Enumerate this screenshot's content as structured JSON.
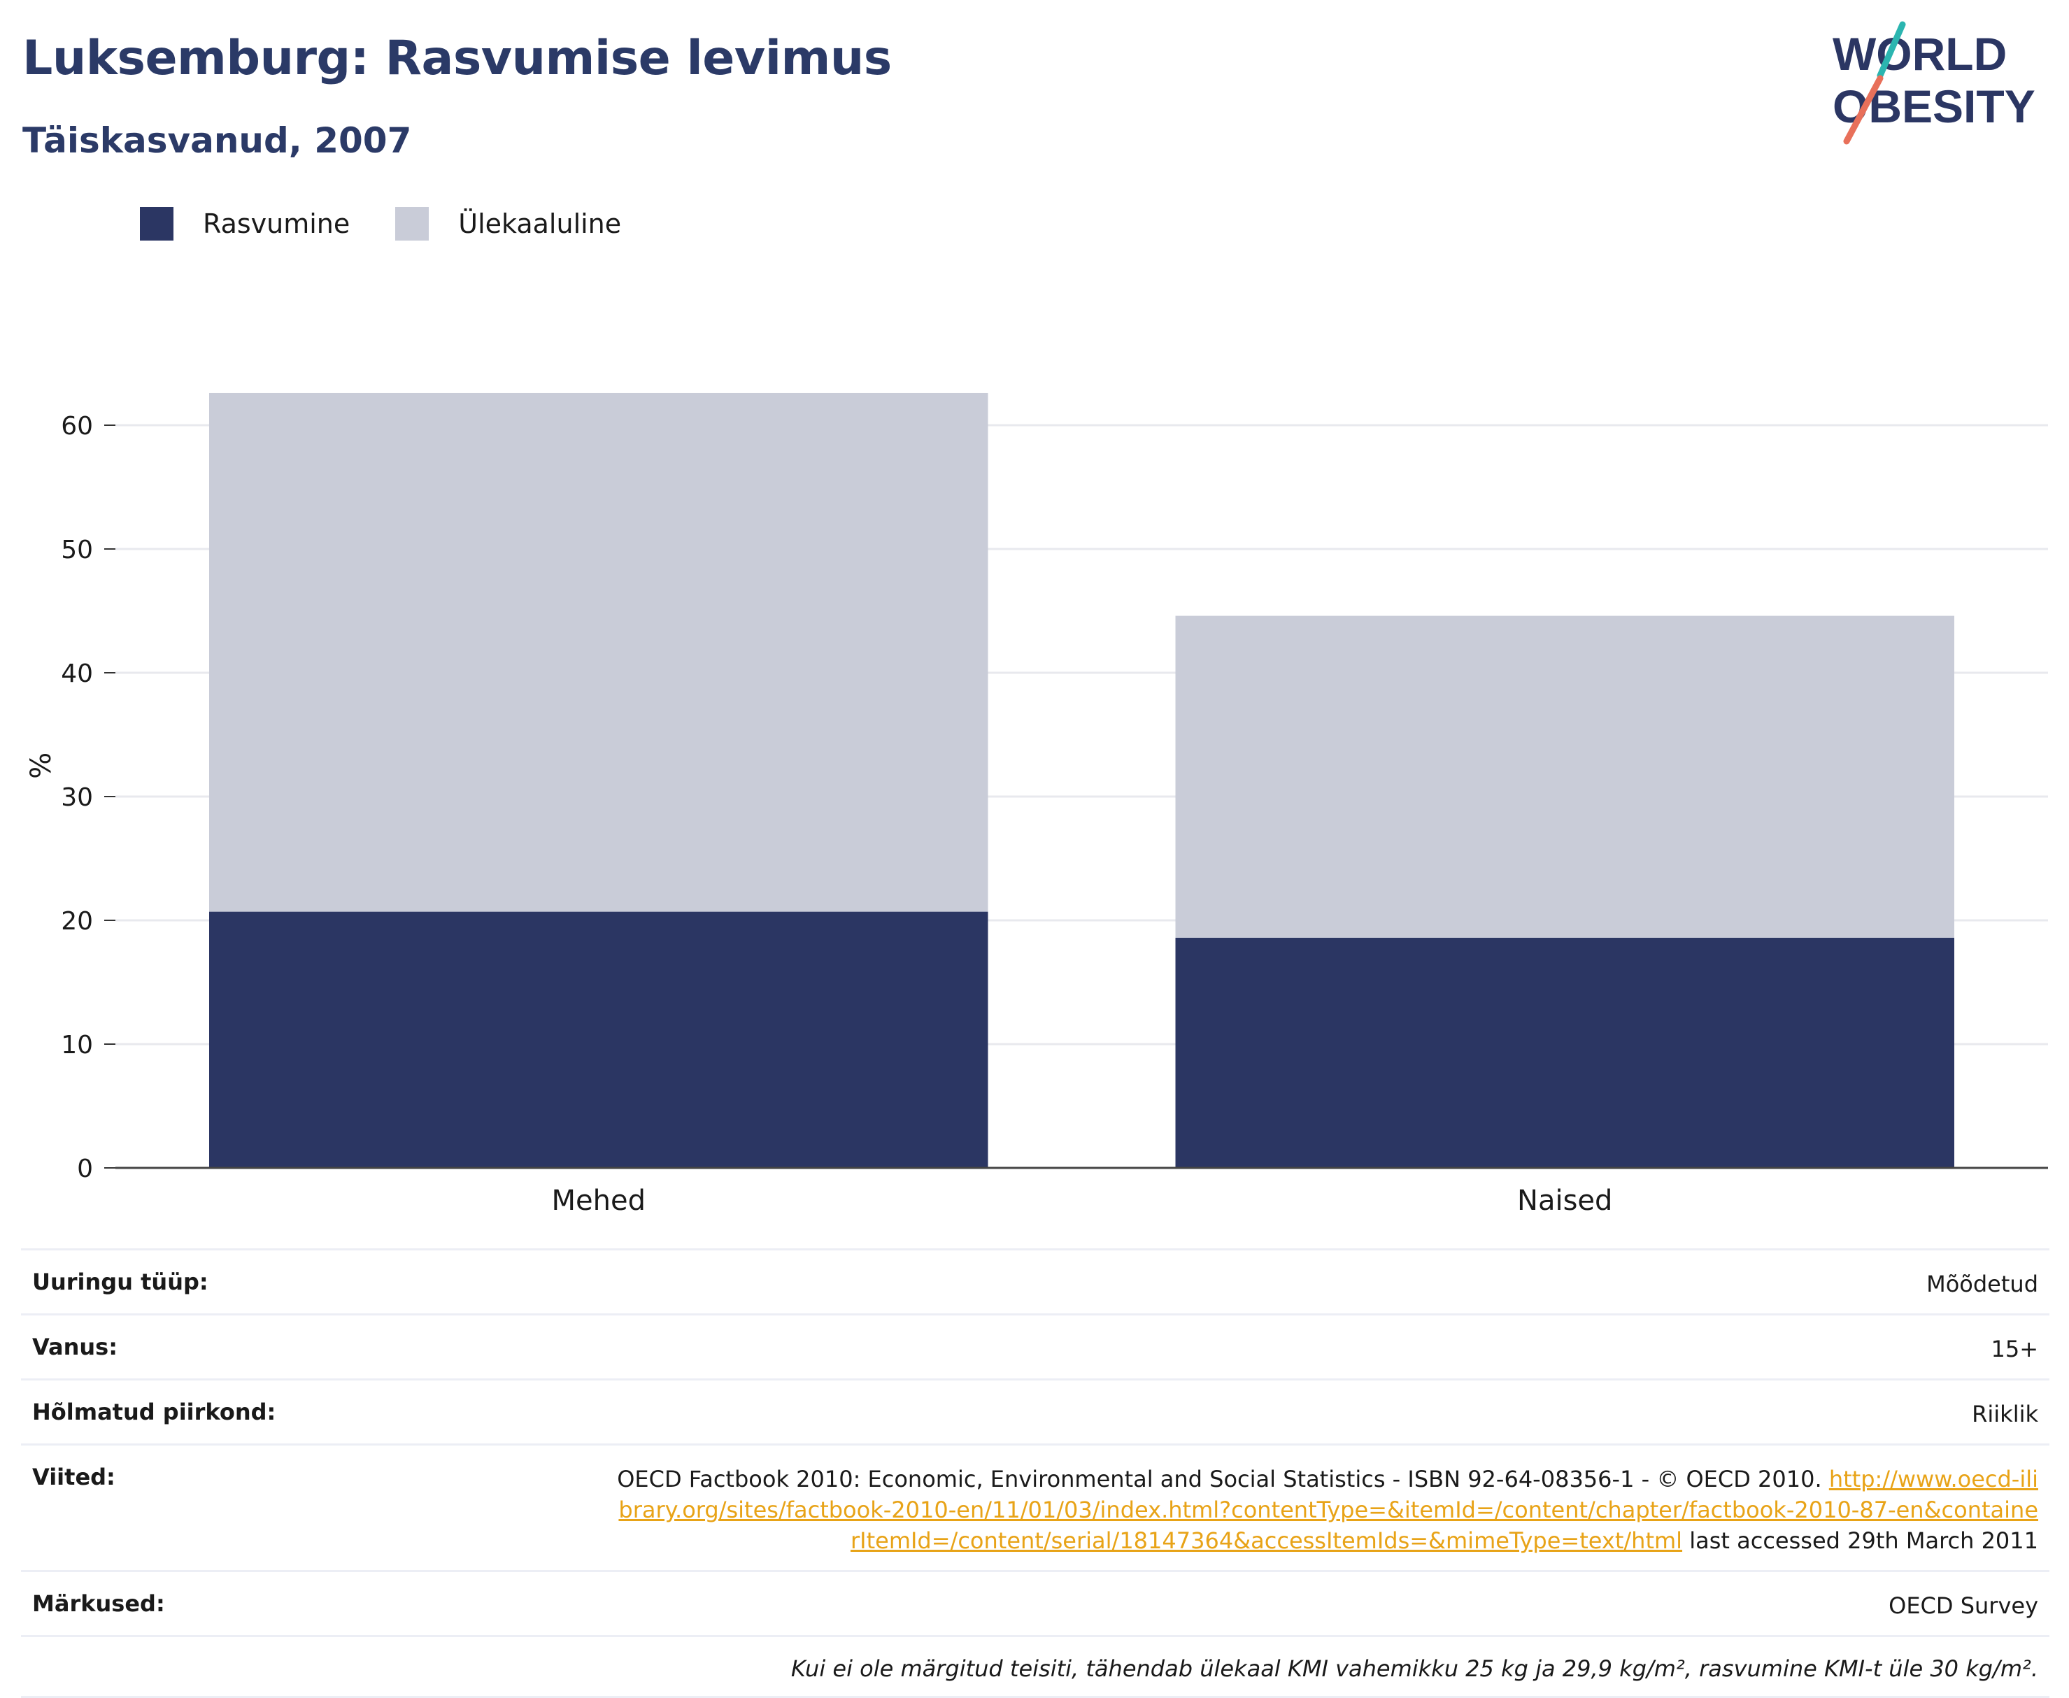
{
  "header": {
    "title": "Luksemburg: Rasvumise levimus",
    "subtitle": "Täiskasvanud, 2007"
  },
  "logo": {
    "line1": "WORLD",
    "line2": "OBESITY",
    "accent_teal": "#2bb5b0",
    "accent_coral": "#e8705a"
  },
  "legend": {
    "items": [
      {
        "label": "Rasvumine",
        "color": "#2b3663"
      },
      {
        "label": "Ülekaaluline",
        "color": "#c9ccd8"
      }
    ]
  },
  "chart_data": {
    "type": "bar",
    "stacked": true,
    "categories": [
      "Mehed",
      "Naised"
    ],
    "series": [
      {
        "name": "Rasvumine",
        "values": [
          20.7,
          18.6
        ],
        "color": "#2b3663"
      },
      {
        "name": "Ülekaaluline",
        "values": [
          41.9,
          26.0
        ],
        "color": "#c9ccd8"
      }
    ],
    "ylabel": "%",
    "xlabel": "",
    "ylim": [
      0,
      65
    ],
    "yticks": [
      0,
      10,
      20,
      30,
      40,
      50,
      60
    ],
    "grid": true,
    "legend_position": "top-left"
  },
  "meta": {
    "survey_type": {
      "label": "Uuringu tüüp:",
      "value": "Mõõdetud"
    },
    "age": {
      "label": "Vanus:",
      "value": "15+"
    },
    "area": {
      "label": "Hõlmatud piirkond:",
      "value": "Riiklik"
    },
    "refs": {
      "label": "Viited:",
      "text": "OECD Factbook 2010: Economic, Environmental and Social Statistics - ISBN 92-64-08356-1 - © OECD 2010. ",
      "link": "http://www.oecd-ilibrary.org/sites/factbook-2010-en/11/01/03/index.html?contentType=&itemId=/content/chapter/factbook-2010-87-en&containerItemId=/content/serial/18147364&accessItemIds=&mimeType=text/html",
      "suffix": " last accessed 29th March 2011"
    },
    "notes": {
      "label": "Märkused:",
      "value": "OECD Survey"
    },
    "footnote": "Kui ei ole märgitud teisiti, tähendab ülekaal KMI vahemikku 25 kg ja 29,9 kg/m², rasvumine KMI-t üle 30 kg/m²."
  }
}
